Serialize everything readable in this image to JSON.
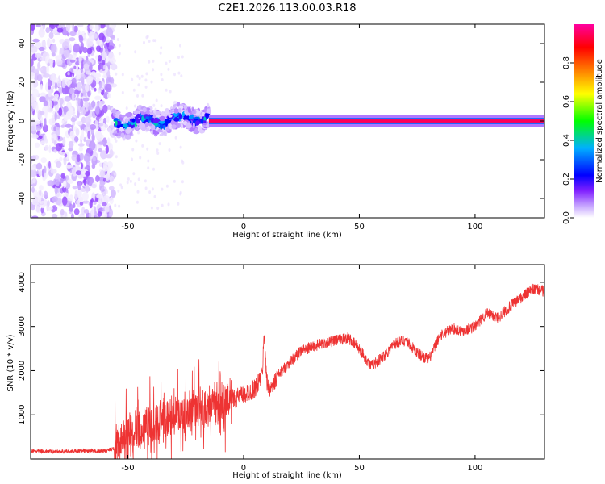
{
  "figure_title": "C2E1.2026.113.00.03.R18",
  "chart_data": [
    {
      "type": "heatmap",
      "title": "C2E1.2026.113.00.03.R18",
      "xlabel": "Height of straight line (km)",
      "ylabel": "Frequency (Hz)",
      "xlim": [
        -92,
        130
      ],
      "ylim": [
        -50,
        50
      ],
      "xticks": [
        -50,
        0,
        50,
        100
      ],
      "yticks": [
        -40,
        -20,
        0,
        20,
        40
      ],
      "grid": false,
      "colorbar": {
        "label": "Normalized spectral amplitude",
        "range": [
          0,
          1
        ],
        "ticks": [
          0.0,
          0.2,
          0.4,
          0.6,
          0.8
        ],
        "colormap": [
          "#ffffff",
          "#c8a8ff",
          "#8020ff",
          "#0000ff",
          "#00b0ff",
          "#00ff00",
          "#ffff00",
          "#ff8000",
          "#ff0000",
          "#ff00a0"
        ]
      },
      "regions": [
        {
          "name": "noise",
          "x": [
            -92,
            -56
          ],
          "freq_range": [
            -50,
            50
          ],
          "amplitude": 0.1
        },
        {
          "name": "onset",
          "x": [
            -56,
            -15
          ],
          "freq_range": [
            -6,
            6
          ],
          "amplitude": 0.4
        },
        {
          "name": "tone",
          "x": [
            -15,
            130
          ],
          "freq": 0,
          "amplitude": 0.95
        }
      ]
    },
    {
      "type": "line",
      "xlabel": "Height of straight line (km)",
      "ylabel": "SNR (10 * v/v)",
      "xlim": [
        -92,
        130
      ],
      "ylim": [
        0,
        4400
      ],
      "xticks": [
        -50,
        0,
        50,
        100
      ],
      "yticks": [
        1000,
        2000,
        3000,
        4000
      ],
      "grid": false,
      "series": [
        {
          "color": "#ee3333",
          "x": [
            -92,
            -80,
            -70,
            -60,
            -55,
            -52,
            -50,
            -45,
            -40,
            -35,
            -30,
            -25,
            -20,
            -15,
            -10,
            -5,
            0,
            5,
            8,
            9,
            10,
            12,
            15,
            20,
            25,
            30,
            35,
            40,
            45,
            50,
            55,
            60,
            65,
            70,
            75,
            80,
            85,
            90,
            95,
            100,
            105,
            110,
            115,
            120,
            125,
            130
          ],
          "values": [
            180,
            170,
            180,
            180,
            250,
            450,
            600,
            700,
            820,
            900,
            980,
            1050,
            1100,
            1150,
            1250,
            1350,
            1450,
            1600,
            1900,
            2900,
            1700,
            1600,
            1900,
            2200,
            2450,
            2550,
            2620,
            2680,
            2750,
            2500,
            2100,
            2300,
            2600,
            2700,
            2400,
            2250,
            2800,
            2950,
            2900,
            3000,
            3300,
            3200,
            3450,
            3650,
            3850,
            3800
          ]
        }
      ]
    }
  ]
}
